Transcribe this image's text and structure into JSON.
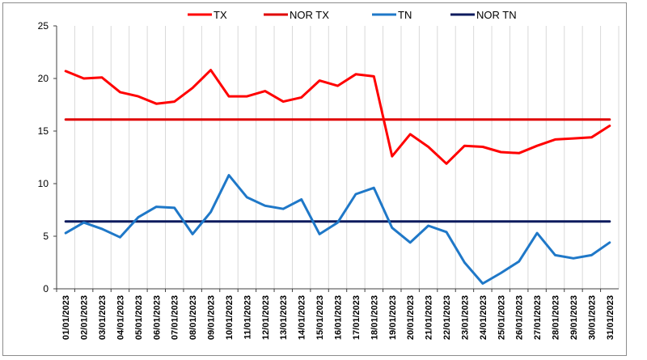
{
  "chart_data": {
    "type": "line",
    "title": "",
    "xlabel": "",
    "ylabel": "",
    "ylim": [
      0,
      25
    ],
    "y_ticks": [
      0,
      5,
      10,
      15,
      20,
      25
    ],
    "grid": "vertical gridlines at each category",
    "legend_position": "top",
    "categories": [
      "01/01/2023",
      "02/01/2023",
      "03/01/2023",
      "04/01/2023",
      "05/01/2023",
      "06/01/2023",
      "07/01/2023",
      "08/01/2023",
      "09/01/2023",
      "10/01/2023",
      "11/01/2023",
      "12/01/2023",
      "13/01/2023",
      "14/01/2023",
      "15/01/2023",
      "16/01/2023",
      "17/01/2023",
      "18/01/2023",
      "19/01/2023",
      "20/01/2023",
      "21/01/2023",
      "22/01/2023",
      "23/01/2023",
      "24/01/2023",
      "25/01/2023",
      "26/01/2023",
      "27/01/2023",
      "28/01/2023",
      "29/01/2023",
      "30/01/2023",
      "31/01/2023"
    ],
    "series": [
      {
        "name": "TX",
        "color": "#ff0000",
        "values": [
          20.7,
          20.0,
          20.1,
          18.7,
          18.3,
          17.6,
          17.8,
          19.1,
          20.8,
          18.3,
          18.3,
          18.8,
          17.8,
          18.2,
          19.8,
          19.3,
          20.4,
          20.2,
          12.6,
          14.7,
          13.5,
          11.9,
          13.6,
          13.5,
          13.0,
          12.9,
          13.6,
          14.2,
          14.3,
          14.4,
          15.5
        ]
      },
      {
        "name": "NOR TX",
        "color": "#e00000",
        "values": [
          16.1,
          16.1,
          16.1,
          16.1,
          16.1,
          16.1,
          16.1,
          16.1,
          16.1,
          16.1,
          16.1,
          16.1,
          16.1,
          16.1,
          16.1,
          16.1,
          16.1,
          16.1,
          16.1,
          16.1,
          16.1,
          16.1,
          16.1,
          16.1,
          16.1,
          16.1,
          16.1,
          16.1,
          16.1,
          16.1,
          16.1
        ]
      },
      {
        "name": "TN",
        "color": "#1f78c8",
        "values": [
          5.3,
          6.3,
          5.7,
          4.9,
          6.8,
          7.8,
          7.7,
          5.2,
          7.3,
          10.8,
          8.7,
          7.9,
          7.6,
          8.5,
          5.2,
          6.3,
          9.0,
          9.6,
          5.8,
          4.4,
          6.0,
          5.4,
          2.5,
          0.5,
          1.5,
          2.6,
          5.3,
          3.2,
          2.9,
          3.2,
          4.4
        ]
      },
      {
        "name": "NOR TN",
        "color": "#0d1b5e",
        "values": [
          6.4,
          6.4,
          6.4,
          6.4,
          6.4,
          6.4,
          6.4,
          6.4,
          6.4,
          6.4,
          6.4,
          6.4,
          6.4,
          6.4,
          6.4,
          6.4,
          6.4,
          6.4,
          6.4,
          6.4,
          6.4,
          6.4,
          6.4,
          6.4,
          6.4,
          6.4,
          6.4,
          6.4,
          6.4,
          6.4,
          6.4
        ]
      }
    ]
  }
}
